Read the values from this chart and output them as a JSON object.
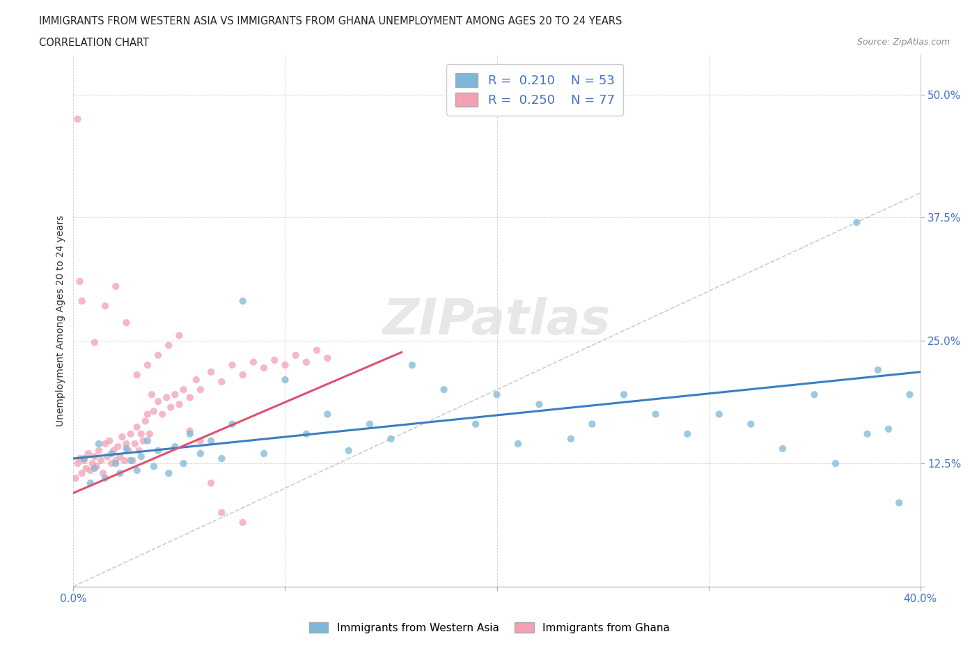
{
  "title_line1": "IMMIGRANTS FROM WESTERN ASIA VS IMMIGRANTS FROM GHANA UNEMPLOYMENT AMONG AGES 20 TO 24 YEARS",
  "title_line2": "CORRELATION CHART",
  "source_text": "Source: ZipAtlas.com",
  "ylabel": "Unemployment Among Ages 20 to 24 years",
  "xlim": [
    0.0,
    0.4
  ],
  "ylim": [
    0.0,
    0.54
  ],
  "x_ticks": [
    0.0,
    0.1,
    0.2,
    0.3,
    0.4
  ],
  "x_tick_labels": [
    "0.0%",
    "",
    "",
    "",
    "40.0%"
  ],
  "y_ticks": [
    0.0,
    0.125,
    0.25,
    0.375,
    0.5
  ],
  "y_tick_labels": [
    "",
    "12.5%",
    "25.0%",
    "37.5%",
    "50.0%"
  ],
  "color_western_asia": "#7db8d8",
  "color_ghana": "#f4a0b5",
  "color_diagonal": "#cccccc",
  "color_tick_label": "#4472c4",
  "western_asia_x": [
    0.005,
    0.008,
    0.01,
    0.012,
    0.015,
    0.018,
    0.02,
    0.022,
    0.025,
    0.027,
    0.03,
    0.032,
    0.035,
    0.038,
    0.04,
    0.045,
    0.048,
    0.052,
    0.055,
    0.06,
    0.065,
    0.07,
    0.075,
    0.08,
    0.09,
    0.1,
    0.11,
    0.12,
    0.13,
    0.14,
    0.15,
    0.16,
    0.175,
    0.19,
    0.2,
    0.21,
    0.22,
    0.235,
    0.245,
    0.26,
    0.275,
    0.29,
    0.305,
    0.32,
    0.335,
    0.35,
    0.36,
    0.37,
    0.375,
    0.38,
    0.385,
    0.39,
    0.395
  ],
  "western_asia_y": [
    0.13,
    0.105,
    0.12,
    0.145,
    0.11,
    0.135,
    0.125,
    0.115,
    0.14,
    0.128,
    0.118,
    0.132,
    0.148,
    0.122,
    0.138,
    0.115,
    0.142,
    0.125,
    0.155,
    0.135,
    0.148,
    0.13,
    0.165,
    0.29,
    0.135,
    0.21,
    0.155,
    0.175,
    0.138,
    0.165,
    0.15,
    0.225,
    0.2,
    0.165,
    0.195,
    0.145,
    0.185,
    0.15,
    0.165,
    0.195,
    0.175,
    0.155,
    0.175,
    0.165,
    0.14,
    0.195,
    0.125,
    0.37,
    0.155,
    0.22,
    0.16,
    0.085,
    0.195
  ],
  "ghana_x": [
    0.001,
    0.002,
    0.003,
    0.004,
    0.005,
    0.006,
    0.007,
    0.008,
    0.009,
    0.01,
    0.011,
    0.012,
    0.013,
    0.014,
    0.015,
    0.016,
    0.017,
    0.018,
    0.019,
    0.02,
    0.021,
    0.022,
    0.023,
    0.024,
    0.025,
    0.026,
    0.027,
    0.028,
    0.029,
    0.03,
    0.031,
    0.032,
    0.033,
    0.034,
    0.035,
    0.036,
    0.037,
    0.038,
    0.04,
    0.042,
    0.044,
    0.046,
    0.048,
    0.05,
    0.052,
    0.055,
    0.058,
    0.06,
    0.065,
    0.07,
    0.075,
    0.08,
    0.085,
    0.09,
    0.095,
    0.1,
    0.105,
    0.11,
    0.115,
    0.12,
    0.01,
    0.015,
    0.02,
    0.025,
    0.03,
    0.035,
    0.04,
    0.045,
    0.05,
    0.002,
    0.003,
    0.004,
    0.055,
    0.06,
    0.065,
    0.07,
    0.08
  ],
  "ghana_y": [
    0.11,
    0.125,
    0.13,
    0.115,
    0.128,
    0.12,
    0.135,
    0.118,
    0.125,
    0.132,
    0.122,
    0.138,
    0.128,
    0.115,
    0.145,
    0.132,
    0.148,
    0.125,
    0.138,
    0.128,
    0.142,
    0.132,
    0.152,
    0.128,
    0.145,
    0.138,
    0.155,
    0.128,
    0.145,
    0.162,
    0.138,
    0.155,
    0.148,
    0.168,
    0.175,
    0.155,
    0.195,
    0.178,
    0.188,
    0.175,
    0.192,
    0.182,
    0.195,
    0.185,
    0.2,
    0.192,
    0.21,
    0.2,
    0.218,
    0.208,
    0.225,
    0.215,
    0.228,
    0.222,
    0.23,
    0.225,
    0.235,
    0.228,
    0.24,
    0.232,
    0.248,
    0.285,
    0.305,
    0.268,
    0.215,
    0.225,
    0.235,
    0.245,
    0.255,
    0.475,
    0.31,
    0.29,
    0.158,
    0.148,
    0.105,
    0.075,
    0.065
  ],
  "wa_trend_x0": 0.0,
  "wa_trend_y0": 0.13,
  "wa_trend_x1": 0.4,
  "wa_trend_y1": 0.218,
  "gh_trend_x0": 0.0,
  "gh_trend_y0": 0.095,
  "gh_trend_x1": 0.155,
  "gh_trend_y1": 0.238
}
